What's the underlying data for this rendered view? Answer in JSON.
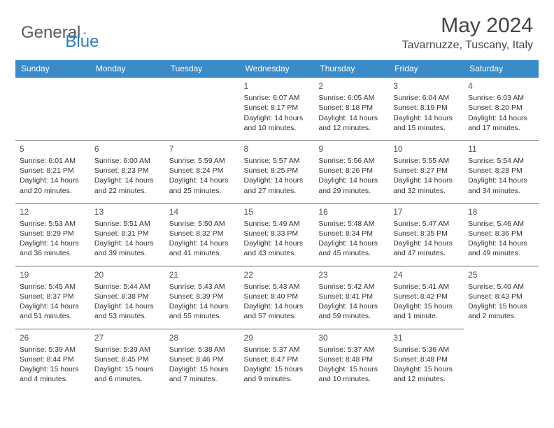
{
  "logo": {
    "text_gray": "General",
    "text_blue": "Blue"
  },
  "title": "May 2024",
  "location": "Tavarnuzze, Tuscany, Italy",
  "colors": {
    "header_bg": "#3b8bc9",
    "header_fg": "#ffffff",
    "border": "#6a6a6a",
    "text": "#333333",
    "title": "#444444",
    "logo_gray": "#5a5a5a",
    "logo_blue": "#2c7bc4"
  },
  "weekdays": [
    "Sunday",
    "Monday",
    "Tuesday",
    "Wednesday",
    "Thursday",
    "Friday",
    "Saturday"
  ],
  "weeks": [
    [
      null,
      null,
      null,
      {
        "d": "1",
        "sr": "6:07 AM",
        "ss": "8:17 PM",
        "dl": "14 hours and 10 minutes."
      },
      {
        "d": "2",
        "sr": "6:05 AM",
        "ss": "8:18 PM",
        "dl": "14 hours and 12 minutes."
      },
      {
        "d": "3",
        "sr": "6:04 AM",
        "ss": "8:19 PM",
        "dl": "14 hours and 15 minutes."
      },
      {
        "d": "4",
        "sr": "6:03 AM",
        "ss": "8:20 PM",
        "dl": "14 hours and 17 minutes."
      }
    ],
    [
      {
        "d": "5",
        "sr": "6:01 AM",
        "ss": "8:21 PM",
        "dl": "14 hours and 20 minutes."
      },
      {
        "d": "6",
        "sr": "6:00 AM",
        "ss": "8:23 PM",
        "dl": "14 hours and 22 minutes."
      },
      {
        "d": "7",
        "sr": "5:59 AM",
        "ss": "8:24 PM",
        "dl": "14 hours and 25 minutes."
      },
      {
        "d": "8",
        "sr": "5:57 AM",
        "ss": "8:25 PM",
        "dl": "14 hours and 27 minutes."
      },
      {
        "d": "9",
        "sr": "5:56 AM",
        "ss": "8:26 PM",
        "dl": "14 hours and 29 minutes."
      },
      {
        "d": "10",
        "sr": "5:55 AM",
        "ss": "8:27 PM",
        "dl": "14 hours and 32 minutes."
      },
      {
        "d": "11",
        "sr": "5:54 AM",
        "ss": "8:28 PM",
        "dl": "14 hours and 34 minutes."
      }
    ],
    [
      {
        "d": "12",
        "sr": "5:53 AM",
        "ss": "8:29 PM",
        "dl": "14 hours and 36 minutes."
      },
      {
        "d": "13",
        "sr": "5:51 AM",
        "ss": "8:31 PM",
        "dl": "14 hours and 39 minutes."
      },
      {
        "d": "14",
        "sr": "5:50 AM",
        "ss": "8:32 PM",
        "dl": "14 hours and 41 minutes."
      },
      {
        "d": "15",
        "sr": "5:49 AM",
        "ss": "8:33 PM",
        "dl": "14 hours and 43 minutes."
      },
      {
        "d": "16",
        "sr": "5:48 AM",
        "ss": "8:34 PM",
        "dl": "14 hours and 45 minutes."
      },
      {
        "d": "17",
        "sr": "5:47 AM",
        "ss": "8:35 PM",
        "dl": "14 hours and 47 minutes."
      },
      {
        "d": "18",
        "sr": "5:46 AM",
        "ss": "8:36 PM",
        "dl": "14 hours and 49 minutes."
      }
    ],
    [
      {
        "d": "19",
        "sr": "5:45 AM",
        "ss": "8:37 PM",
        "dl": "14 hours and 51 minutes."
      },
      {
        "d": "20",
        "sr": "5:44 AM",
        "ss": "8:38 PM",
        "dl": "14 hours and 53 minutes."
      },
      {
        "d": "21",
        "sr": "5:43 AM",
        "ss": "8:39 PM",
        "dl": "14 hours and 55 minutes."
      },
      {
        "d": "22",
        "sr": "5:43 AM",
        "ss": "8:40 PM",
        "dl": "14 hours and 57 minutes."
      },
      {
        "d": "23",
        "sr": "5:42 AM",
        "ss": "8:41 PM",
        "dl": "14 hours and 59 minutes."
      },
      {
        "d": "24",
        "sr": "5:41 AM",
        "ss": "8:42 PM",
        "dl": "15 hours and 1 minute."
      },
      {
        "d": "25",
        "sr": "5:40 AM",
        "ss": "8:43 PM",
        "dl": "15 hours and 2 minutes."
      }
    ],
    [
      {
        "d": "26",
        "sr": "5:39 AM",
        "ss": "8:44 PM",
        "dl": "15 hours and 4 minutes."
      },
      {
        "d": "27",
        "sr": "5:39 AM",
        "ss": "8:45 PM",
        "dl": "15 hours and 6 minutes."
      },
      {
        "d": "28",
        "sr": "5:38 AM",
        "ss": "8:46 PM",
        "dl": "15 hours and 7 minutes."
      },
      {
        "d": "29",
        "sr": "5:37 AM",
        "ss": "8:47 PM",
        "dl": "15 hours and 9 minutes."
      },
      {
        "d": "30",
        "sr": "5:37 AM",
        "ss": "8:48 PM",
        "dl": "15 hours and 10 minutes."
      },
      {
        "d": "31",
        "sr": "5:36 AM",
        "ss": "8:48 PM",
        "dl": "15 hours and 12 minutes."
      },
      null
    ]
  ],
  "labels": {
    "sunrise": "Sunrise:",
    "sunset": "Sunset:",
    "daylight": "Daylight:"
  }
}
